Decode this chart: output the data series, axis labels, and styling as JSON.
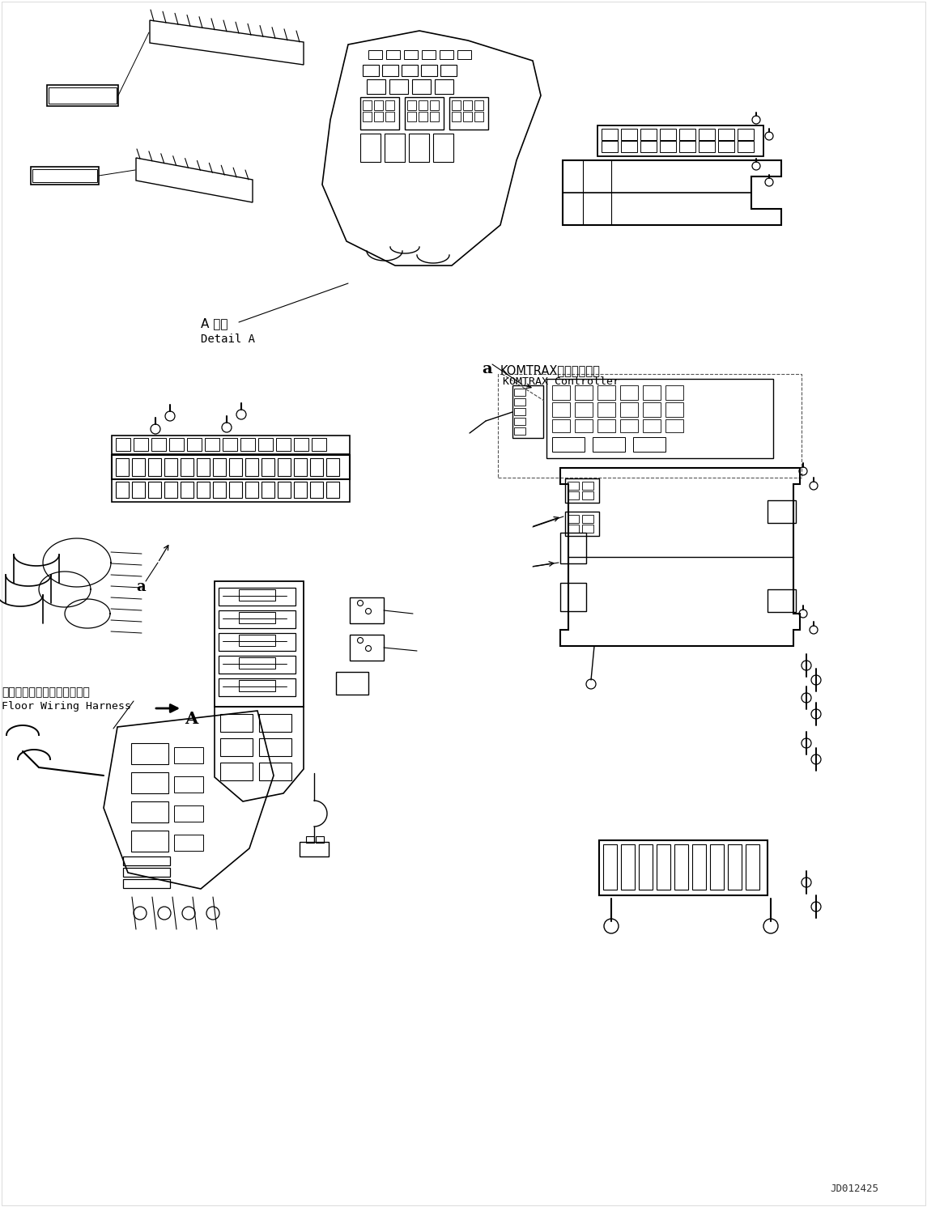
{
  "figure_width": 11.45,
  "figure_height": 14.91,
  "dpi": 100,
  "background_color": "#ffffff",
  "watermark": "JD012425",
  "label_a_detail_jp": "A 詳細",
  "label_a_detail_en": "Detail A",
  "label_komtrax_jp": "KOMTRAXコントローラ",
  "label_komtrax_en": "KOMTRAX Controller",
  "label_floor_jp": "フロアワイヤリングハーネス",
  "label_floor_en": "Floor Wiring Harness",
  "label_a_arrow": "A",
  "label_a_small": "a",
  "line_color": "#000000",
  "text_color": "#000000"
}
